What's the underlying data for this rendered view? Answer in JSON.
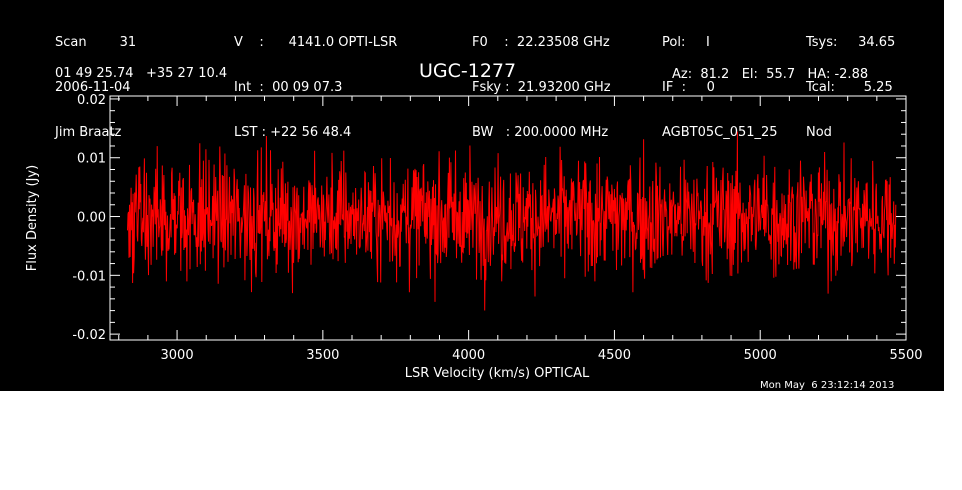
{
  "header": {
    "col1": [
      "Scan        31",
      "2006-11-04",
      "Jim Braatz"
    ],
    "col2": [
      "V    :      4141.0 OPTI-LSR",
      "Int  :  00 09 07.3",
      "LST : +22 56 48.4"
    ],
    "col3": [
      "F0    :  22.23508 GHz",
      "Fsky :  21.93200 GHz",
      "BW   : 200.0000 MHz"
    ],
    "col4": [
      "Pol:     I",
      "IF  :     0",
      "AGBT05C_051_25"
    ],
    "col5": [
      "Tsys:     34.65",
      "Tcal:       5.25",
      "Nod"
    ],
    "coords": "01 49 25.74   +35 27 10.4",
    "pointing": "Az:  81.2   El:  55.7   HA: -2.88"
  },
  "footer": {
    "timestamp": "Mon May  6 23:12:14 2013"
  },
  "chart_data": {
    "type": "line",
    "title": "UGC-1277",
    "xlabel": "LSR Velocity (km/s) OPTICAL",
    "ylabel": "Flux Density (Jy)",
    "xlim": [
      2770,
      5500
    ],
    "ylim": [
      -0.021,
      0.0205
    ],
    "x_ticks": [
      3000,
      3500,
      4000,
      4500,
      5000,
      5500
    ],
    "x_tick_labels": [
      "3000",
      "3500",
      "4000",
      "4500",
      "5000",
      "5500"
    ],
    "y_ticks": [
      -0.02,
      -0.01,
      0.0,
      0.01,
      0.02
    ],
    "y_tick_labels": [
      "-0.02",
      "-0.01",
      "0.00",
      "0.01",
      "0.02"
    ],
    "grid": false,
    "series": [
      {
        "color": "#ff0000",
        "x_start": 2830,
        "x_end": 5465,
        "n_points": 1500,
        "noise_rms": 0.005,
        "mean": 0.0,
        "min": -0.019,
        "max": 0.017
      }
    ]
  }
}
